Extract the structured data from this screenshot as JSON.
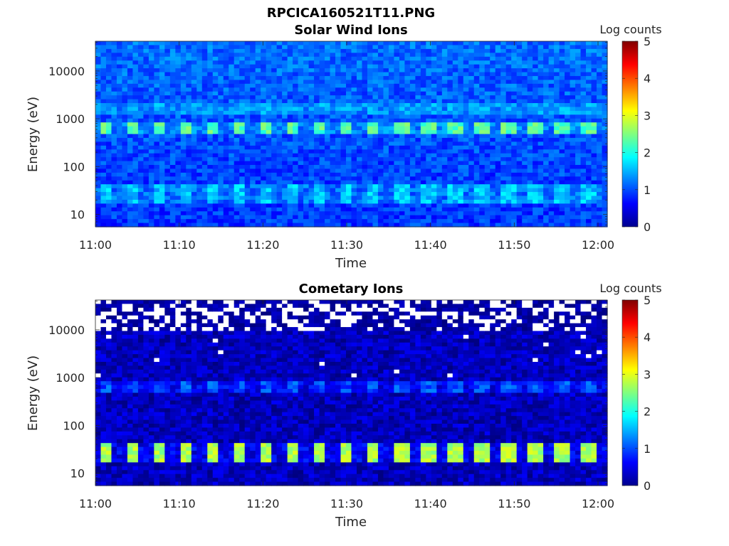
{
  "figure": {
    "title": "RPCICA160521T11.PNG"
  },
  "chart_data": [
    {
      "type": "heatmap",
      "title": "Solar Wind Ions",
      "xlabel": "Time",
      "ylabel": "Energy (eV)",
      "x_ticks": [
        "11:00",
        "11:10",
        "11:20",
        "11:30",
        "11:40",
        "11:50",
        "12:00"
      ],
      "x_range": [
        "11:00",
        "12:01"
      ],
      "y_ticks": [
        "10",
        "100",
        "1000",
        "10000"
      ],
      "y_scale": "log",
      "y_range": [
        5.5,
        42000
      ],
      "colorbar": {
        "label": "Log counts",
        "ticks": [
          "0",
          "1",
          "2",
          "3",
          "4",
          "5"
        ],
        "range": [
          0,
          5
        ],
        "colormap": "jet"
      },
      "sweep_minutes": 3.2,
      "bands": [
        {
          "energy_low": 18,
          "energy_high": 45,
          "peak_log_counts": 1.9
        },
        {
          "energy_low": 450,
          "energy_high": 900,
          "peak_log_counts": 2.6
        },
        {
          "energy_low": 1200,
          "energy_high": 2300,
          "peak_log_counts": 1.7
        }
      ],
      "background_log_counts": 0.9
    },
    {
      "type": "heatmap",
      "title": "Cometary Ions",
      "xlabel": "Time",
      "ylabel": "Energy (eV)",
      "x_ticks": [
        "11:00",
        "11:10",
        "11:20",
        "11:30",
        "11:40",
        "11:50",
        "12:00"
      ],
      "x_range": [
        "11:00",
        "12:01"
      ],
      "y_ticks": [
        "10",
        "100",
        "1000",
        "10000"
      ],
      "y_scale": "log",
      "y_range": [
        5.5,
        42000
      ],
      "colorbar": {
        "label": "Log counts",
        "ticks": [
          "0",
          "1",
          "2",
          "3",
          "4",
          "5"
        ],
        "range": [
          0,
          5
        ],
        "colormap": "jet"
      },
      "sweep_minutes": 3.2,
      "bands": [
        {
          "energy_low": 18,
          "energy_high": 45,
          "peak_log_counts": 3.0
        },
        {
          "energy_low": 500,
          "energy_high": 850,
          "peak_log_counts": 1.3
        }
      ],
      "background_log_counts": 0.3,
      "empty_bins_above_energy": 9000
    }
  ]
}
